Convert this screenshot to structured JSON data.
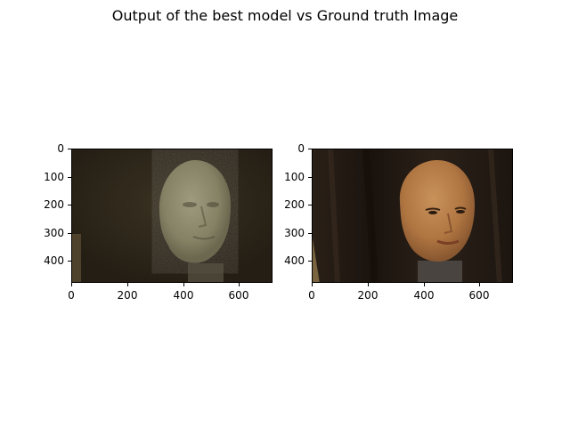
{
  "title": "Output of the best model vs Ground truth Image",
  "panels": [
    {
      "name": "model-output",
      "yticks": [
        "0",
        "100",
        "200",
        "300",
        "400"
      ],
      "xticks": [
        "0",
        "200",
        "400",
        "600"
      ]
    },
    {
      "name": "ground-truth",
      "yticks": [
        "0",
        "100",
        "200",
        "300",
        "400"
      ],
      "xticks": [
        "0",
        "200",
        "400",
        "600"
      ]
    }
  ],
  "colors": {
    "output_bg": "#2b2418",
    "output_face": "#8e8a6e",
    "truth_bg": "#231a12",
    "truth_face": "#b47a45"
  }
}
